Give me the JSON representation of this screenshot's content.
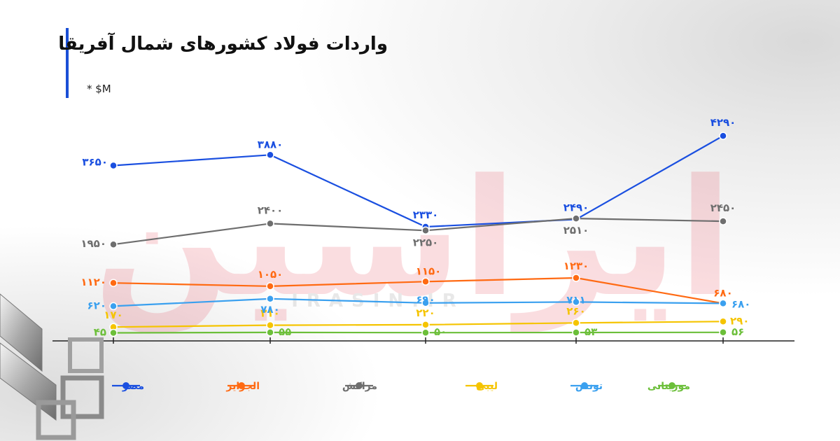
{
  "title": "واردات فولاد کشورهای شمال آفریقا",
  "unit_note": "* $M",
  "watermark": {
    "logo": "ایراسین",
    "site": "IRASIN.IR"
  },
  "chart_data": {
    "type": "line",
    "title": "واردات فولاد کشورهای شمال آفریقا",
    "xlabel": "",
    "ylabel": "",
    "grid": false,
    "legend_position": "bottom",
    "x": [
      1,
      2,
      3,
      4,
      5
    ],
    "series": [
      {
        "name": "مصر",
        "color": "#1a4fe0",
        "values": [
          3650,
          3880,
          2330,
          2490,
          4290
        ],
        "labels": [
          "۳۶۵۰",
          "۳۸۸۰",
          "۲۳۳۰",
          "۲۴۹۰",
          "۴۲۹۰"
        ]
      },
      {
        "name": "الجزایر",
        "color": "#ff6a13",
        "values": [
          1120,
          1050,
          1150,
          1230,
          680
        ],
        "labels": [
          "۱۱۲۰",
          "۱۰۵۰",
          "۱۱۵۰",
          "۱۲۳۰",
          "۶۸۰"
        ]
      },
      {
        "name": "مراکش",
        "color": "#6e6e6e",
        "values": [
          1950,
          2400,
          2250,
          2510,
          2450
        ],
        "labels": [
          "۱۹۵۰",
          "۲۴۰۰",
          "۲۲۵۰",
          "۲۵۱۰",
          "۲۴۵۰"
        ]
      },
      {
        "name": "لیبی",
        "color": "#f5c400",
        "values": [
          170,
          210,
          220,
          260,
          290
        ],
        "labels": [
          "۱۷۰",
          "۲۱۰",
          "۲۲۰",
          "۲۶۰",
          "۲۹۰"
        ]
      },
      {
        "name": "تونس",
        "color": "#3aa0ef",
        "values": [
          620,
          780,
          690,
          711,
          680
        ],
        "labels": [
          "۶۲۰",
          "۷۸۰",
          "۶۹۰",
          "۷۱۱",
          "۶۸۰"
        ]
      },
      {
        "name": "موریتانی",
        "color": "#6cbf3a",
        "values": [
          45,
          55,
          50,
          53,
          56
        ],
        "labels": [
          "۴۵",
          "۵۵",
          "۵۰",
          "۵۳",
          "۵۶"
        ]
      }
    ]
  }
}
